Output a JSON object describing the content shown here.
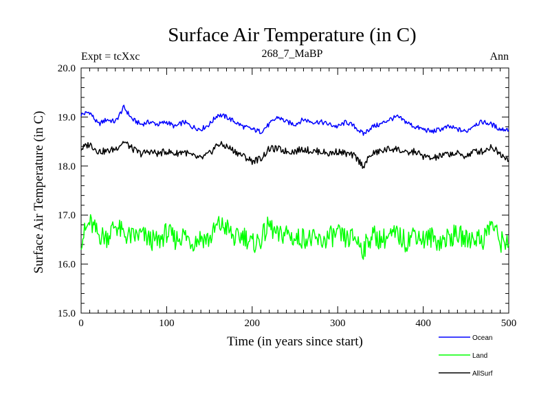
{
  "chart_data": {
    "type": "line",
    "title": "Surface Air Temperature (in C)",
    "subtitle_left": "Expt = tcXxc",
    "subtitle_center": "268_7_MaBP",
    "subtitle_right": "Ann",
    "xlabel": "Time (in years since start)",
    "ylabel": "Surface Air Temperature (in C)",
    "xlim": [
      0,
      500
    ],
    "ylim": [
      15.0,
      20.0
    ],
    "xticks": [
      0,
      100,
      200,
      300,
      400,
      500
    ],
    "xtick_labels": [
      "0",
      "100",
      "200",
      "300",
      "400",
      "500"
    ],
    "yticks": [
      15.0,
      16.0,
      17.0,
      18.0,
      19.0,
      20.0
    ],
    "ytick_labels": [
      "15.0",
      "16.0",
      "17.0",
      "18.0",
      "19.0",
      "20.0"
    ],
    "legend_position": "bottom-right",
    "series": [
      {
        "name": "Ocean",
        "color": "#0000ff",
        "x_step": 10,
        "values": [
          19.05,
          19.1,
          18.85,
          18.95,
          18.9,
          19.2,
          18.95,
          18.85,
          18.9,
          18.85,
          18.9,
          18.8,
          18.9,
          18.8,
          18.75,
          18.85,
          19.05,
          19.0,
          18.9,
          18.8,
          18.75,
          18.7,
          18.85,
          19.0,
          18.9,
          18.85,
          18.95,
          18.9,
          18.9,
          18.85,
          18.8,
          18.9,
          18.8,
          18.65,
          18.8,
          18.85,
          18.95,
          19.0,
          18.9,
          18.8,
          18.75,
          18.7,
          18.75,
          18.8,
          18.75,
          18.7,
          18.85,
          18.9,
          18.85,
          18.75,
          18.75
        ]
      },
      {
        "name": "Land",
        "color": "#00ff00",
        "x_step": 10,
        "values": [
          16.5,
          16.85,
          16.6,
          16.55,
          16.8,
          16.6,
          16.55,
          16.6,
          16.5,
          16.45,
          16.65,
          16.5,
          16.6,
          16.45,
          16.55,
          16.5,
          16.8,
          16.75,
          16.5,
          16.6,
          16.4,
          16.5,
          16.8,
          16.55,
          16.65,
          16.5,
          16.55,
          16.5,
          16.45,
          16.55,
          16.6,
          16.5,
          16.55,
          16.3,
          16.6,
          16.5,
          16.55,
          16.6,
          16.45,
          16.65,
          16.5,
          16.55,
          16.45,
          16.55,
          16.6,
          16.5,
          16.55,
          16.5,
          16.85,
          16.45,
          16.5
        ]
      },
      {
        "name": "AllSurf",
        "color": "#000000",
        "x_step": 10,
        "values": [
          18.35,
          18.45,
          18.3,
          18.3,
          18.35,
          18.5,
          18.35,
          18.25,
          18.3,
          18.25,
          18.3,
          18.25,
          18.3,
          18.2,
          18.15,
          18.25,
          18.45,
          18.4,
          18.3,
          18.2,
          18.1,
          18.15,
          18.35,
          18.35,
          18.3,
          18.3,
          18.35,
          18.3,
          18.3,
          18.25,
          18.3,
          18.25,
          18.2,
          18.0,
          18.25,
          18.3,
          18.35,
          18.35,
          18.25,
          18.3,
          18.2,
          18.15,
          18.2,
          18.25,
          18.25,
          18.2,
          18.3,
          18.3,
          18.4,
          18.25,
          18.15
        ]
      }
    ]
  }
}
